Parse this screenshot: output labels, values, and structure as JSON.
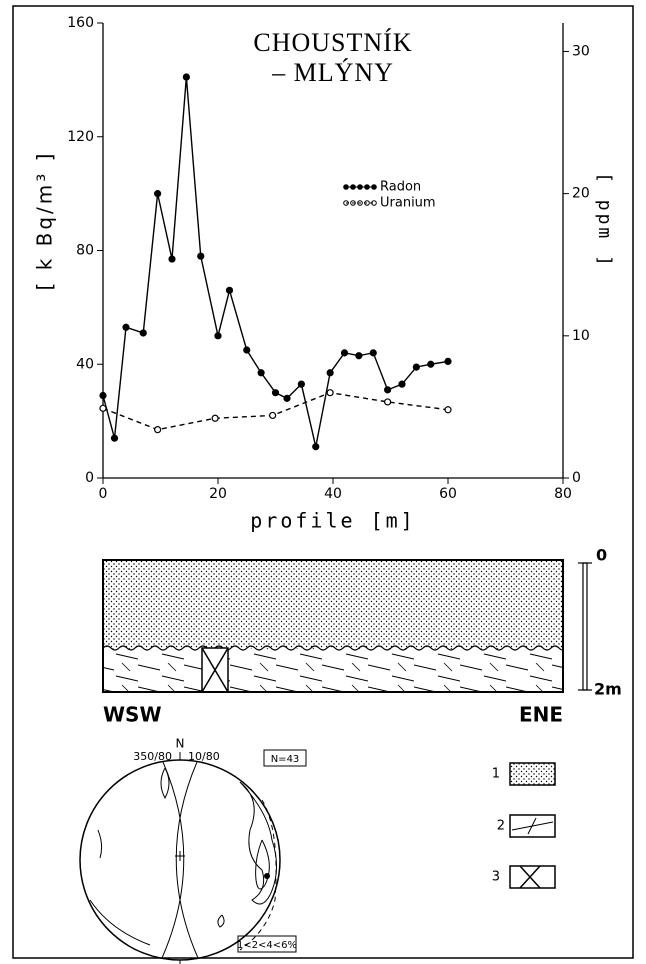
{
  "chart_data": {
    "type": "line",
    "title": [
      "CHOUSTNÍK",
      "– MLÝNY"
    ],
    "xlabel": "profile [m]",
    "ylabel": "[ k Bq/m³ ]",
    "y2label": "[ ppm ]",
    "xlim": [
      0,
      80
    ],
    "xticks": [
      0,
      20,
      40,
      60,
      80
    ],
    "ylim": [
      0,
      160
    ],
    "yticks": [
      0,
      40,
      80,
      120,
      160
    ],
    "y2lim": [
      0,
      32
    ],
    "y2ticks": [
      0,
      10,
      20,
      30
    ],
    "series": [
      {
        "name": "Radon",
        "color": "#000000",
        "marker": "filled",
        "dashed": false,
        "x": [
          0,
          2,
          4,
          7,
          9.5,
          12,
          14.5,
          17,
          20,
          22,
          25,
          27.5,
          30,
          32,
          34.5,
          37,
          39.5,
          42,
          44.5,
          47,
          49.5,
          52,
          54.5,
          57,
          60
        ],
        "values": [
          29,
          14,
          53,
          51,
          100,
          77,
          141,
          78,
          50,
          66,
          45,
          37,
          30,
          28,
          33,
          11,
          37,
          44,
          43,
          44,
          31,
          33,
          39,
          40,
          41
        ]
      },
      {
        "name": "Uranium",
        "color": "#000000",
        "marker": "open",
        "dashed": true,
        "axis": "y2",
        "x": [
          0,
          9.5,
          19.5,
          29.5,
          39.5,
          49.5,
          60
        ],
        "values": [
          4.9,
          3.4,
          4.2,
          4.4,
          6.0,
          5.35,
          4.8
        ]
      }
    ]
  },
  "section": {
    "left": "WSW",
    "right": "ENE",
    "scale_top": "0",
    "scale_bottom": "2m"
  },
  "stereonet": {
    "north": "N",
    "plane1": "350/80",
    "plane2": "10/80",
    "count": "N=43",
    "contours": "1<2<4<6%"
  },
  "legend": {
    "items": [
      "1",
      "2",
      "3"
    ]
  }
}
